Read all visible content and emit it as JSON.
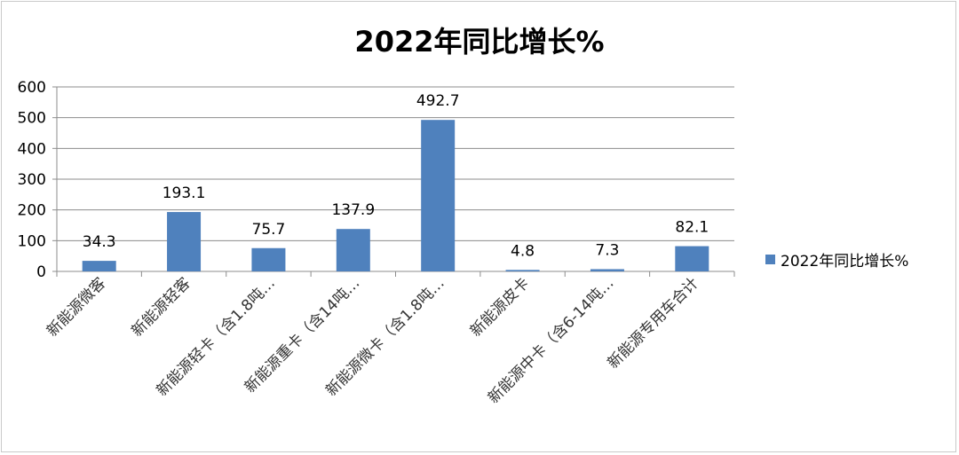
{
  "chart_data": {
    "type": "bar",
    "title": "2022年同比增长%",
    "categories": [
      "新能源微客",
      "新能源轻客",
      "新能源轻卡（含1.8吨…",
      "新能源重卡（含14吨…",
      "新能源微卡（含1.8吨…",
      "新能源皮卡",
      "新能源中卡（含6-14吨…",
      "新能源专用车合计"
    ],
    "series": [
      {
        "name": "2022年同比增长%",
        "values": [
          34.3,
          193.1,
          75.7,
          137.9,
          492.7,
          4.8,
          7.3,
          82.1
        ],
        "color": "#4f81bd"
      }
    ],
    "data_labels": [
      "34.3",
      "193.1",
      "75.7",
      "137.9",
      "492.7",
      "4.8",
      "7.3",
      "82.1"
    ],
    "ylim": [
      0,
      600
    ],
    "yticks": [
      0,
      100,
      200,
      300,
      400,
      500,
      600
    ],
    "grid": true,
    "legend_position": "right"
  }
}
